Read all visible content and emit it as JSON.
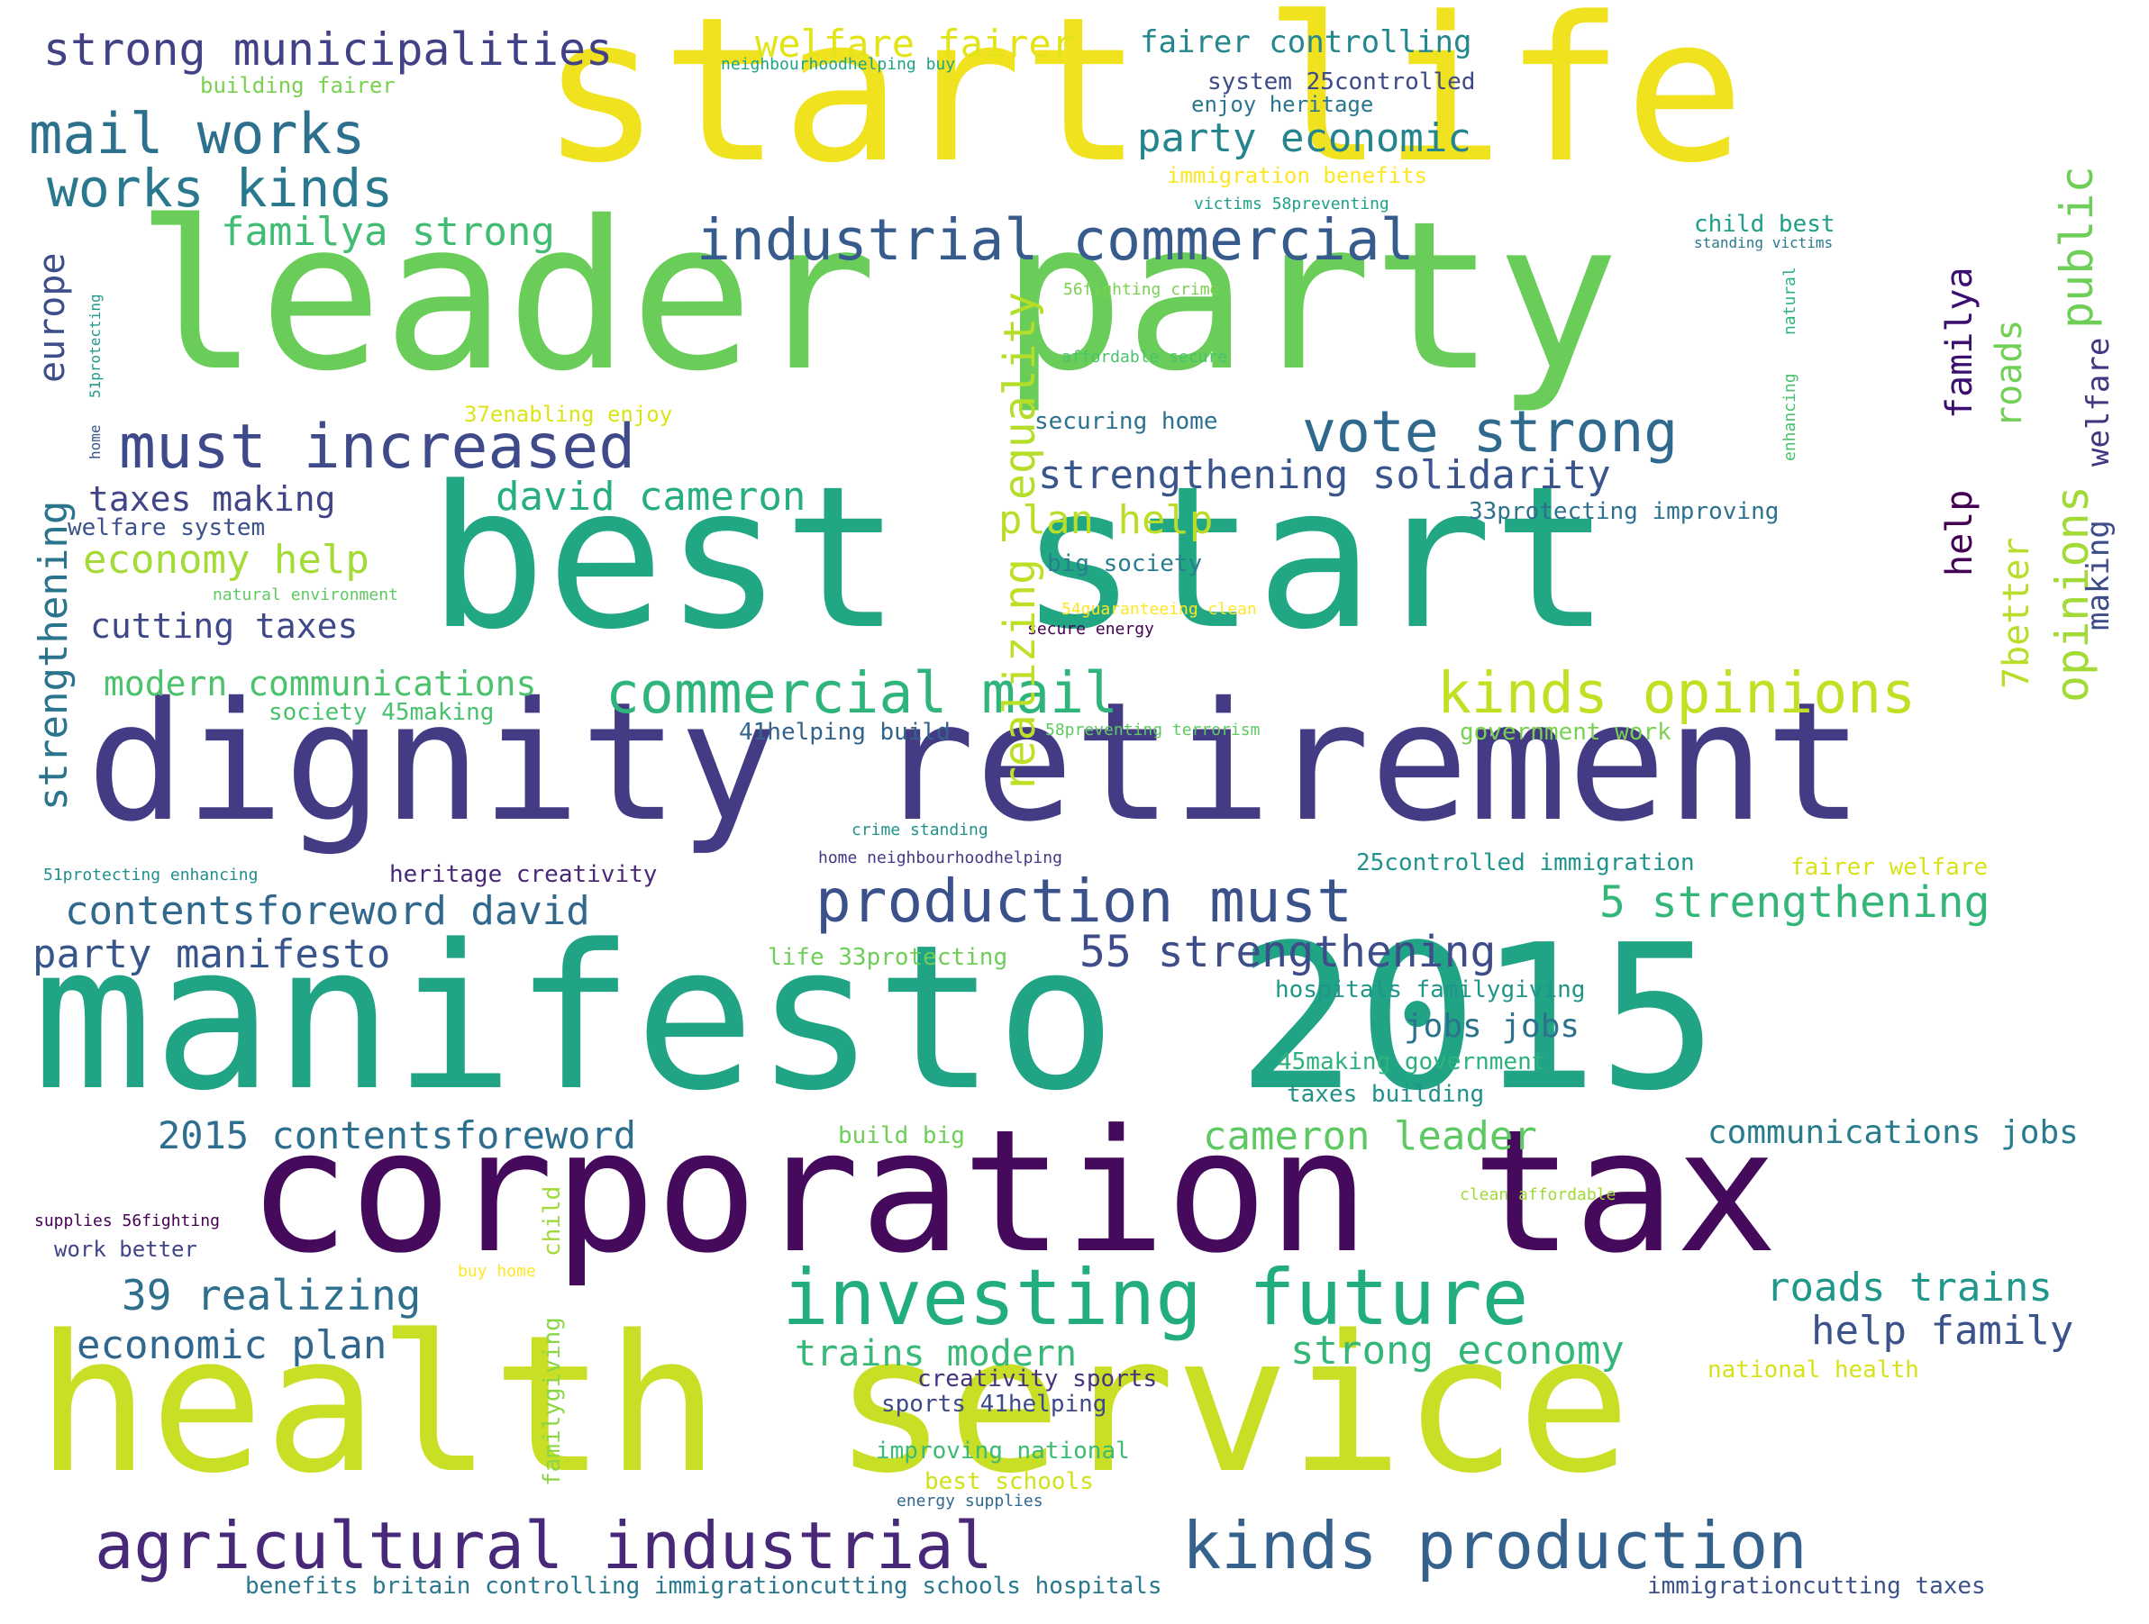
{
  "words": [
    {
      "text": "start life",
      "color": "#f0e21f"
    },
    {
      "text": "leader party",
      "color": "#6bcd59"
    },
    {
      "text": "best start",
      "color": "#22a784"
    },
    {
      "text": "dignity retirement",
      "color": "#433c84"
    },
    {
      "text": "manifesto 2015",
      "color": "#21a485"
    },
    {
      "text": "corporation tax",
      "color": "#450a5c"
    },
    {
      "text": "health service",
      "color": "#c8df25"
    },
    {
      "text": "investing future",
      "color": "#22ad7d"
    },
    {
      "text": "agricultural industrial",
      "color": "#482878"
    },
    {
      "text": "kinds production",
      "color": "#35618d"
    },
    {
      "text": "production must",
      "color": "#3b518b"
    },
    {
      "text": "must increased",
      "color": "#3e4a89"
    },
    {
      "text": "industrial commercial",
      "color": "#375b8d"
    },
    {
      "text": "commercial mail",
      "color": "#2fb47c"
    },
    {
      "text": "kinds opinions",
      "color": "#c2df23"
    },
    {
      "text": "vote strong",
      "color": "#30698e"
    },
    {
      "text": "mail works",
      "color": "#2d708e"
    },
    {
      "text": "works kinds",
      "color": "#2a788e"
    },
    {
      "text": "strong municipalities",
      "color": "#424186"
    },
    {
      "text": "welfare fairer",
      "color": "#e2e418"
    },
    {
      "text": "fairer controlling",
      "color": "#24878e"
    },
    {
      "text": "party economic",
      "color": "#25858e"
    },
    {
      "text": "familya strong",
      "color": "#40bd72"
    },
    {
      "text": "strengthening solidarity",
      "color": "#3a548c"
    },
    {
      "text": "david cameron",
      "color": "#26ad81"
    },
    {
      "text": "taxes making",
      "color": "#404588"
    },
    {
      "text": "economy help",
      "color": "#a5db36"
    },
    {
      "text": "plan help",
      "color": "#bade28"
    },
    {
      "text": "cutting taxes",
      "color": "#3f4889"
    },
    {
      "text": "modern communications",
      "color": "#4cc26c"
    },
    {
      "text": "contentsforeword david",
      "color": "#31688e"
    },
    {
      "text": "party manifesto",
      "color": "#39568c"
    },
    {
      "text": "5 strengthening",
      "color": "#34b679"
    },
    {
      "text": "55 strengthening",
      "color": "#3e4c8a"
    },
    {
      "text": "jobs jobs",
      "color": "#2c728e"
    },
    {
      "text": "2015 contentsforeword",
      "color": "#2e6e8e"
    },
    {
      "text": "cameron leader",
      "color": "#5ec962"
    },
    {
      "text": "communications jobs",
      "color": "#287c8e"
    },
    {
      "text": "39 realizing",
      "color": "#2e6f8e"
    },
    {
      "text": "economic plan",
      "color": "#31678e"
    },
    {
      "text": "trains modern",
      "color": "#38b977"
    },
    {
      "text": "strong economy",
      "color": "#35b779"
    },
    {
      "text": "roads trains",
      "color": "#1f988b"
    },
    {
      "text": "help family",
      "color": "#3b528b"
    },
    {
      "text": "building fairer",
      "color": "#7ad151"
    },
    {
      "text": "system 25controlled",
      "color": "#3e4989"
    },
    {
      "text": "enjoy heritage",
      "color": "#2a768e"
    },
    {
      "text": "immigration benefits",
      "color": "#fde725"
    },
    {
      "text": "victims 58preventing",
      "color": "#1fa088"
    },
    {
      "text": "child best",
      "color": "#1f9e89"
    },
    {
      "text": "standing victims",
      "color": "#29798e"
    },
    {
      "text": "56fighting crime",
      "color": "#7ad151"
    },
    {
      "text": "affordable secure",
      "color": "#4ac16d"
    },
    {
      "text": "37enabling enjoy",
      "color": "#dde318"
    },
    {
      "text": "securing home",
      "color": "#2c718e"
    },
    {
      "text": "33protecting improving",
      "color": "#2c718e"
    },
    {
      "text": "big society",
      "color": "#287d8e"
    },
    {
      "text": "54guaranteeing clean",
      "color": "#fde725"
    },
    {
      "text": "secure energy",
      "color": "#440154"
    },
    {
      "text": "welfare system",
      "color": "#3b528b"
    },
    {
      "text": "natural environment",
      "color": "#5ec962"
    },
    {
      "text": "society 45making",
      "color": "#4ac16d"
    },
    {
      "text": "41helping build",
      "color": "#33638d"
    },
    {
      "text": "58preventing terrorism",
      "color": "#5ec962"
    },
    {
      "text": "government work",
      "color": "#7ad151"
    },
    {
      "text": "crime standing",
      "color": "#21918c"
    },
    {
      "text": "51protecting enhancing",
      "color": "#228d8d"
    },
    {
      "text": "heritage creativity",
      "color": "#482878"
    },
    {
      "text": "home neighbourhoodhelping",
      "color": "#443983"
    },
    {
      "text": "25controlled immigration",
      "color": "#20938c"
    },
    {
      "text": "fairer welfare",
      "color": "#d8e219"
    },
    {
      "text": "life 33protecting",
      "color": "#6ece58"
    },
    {
      "text": "hospitals familygiving",
      "color": "#1f968b"
    },
    {
      "text": "45making government",
      "color": "#2db27d"
    },
    {
      "text": "taxes building",
      "color": "#21918c"
    },
    {
      "text": "build big",
      "color": "#6ece58"
    },
    {
      "text": "clean affordable",
      "color": "#a0da39"
    },
    {
      "text": "supplies 56fighting",
      "color": "#440154"
    },
    {
      "text": "work better",
      "color": "#414487"
    },
    {
      "text": "buy home",
      "color": "#fde725"
    },
    {
      "text": "creativity sports",
      "color": "#46327e"
    },
    {
      "text": "sports 41helping",
      "color": "#3e4989"
    },
    {
      "text": "national health",
      "color": "#d8e219"
    },
    {
      "text": "improving national",
      "color": "#3bbb75"
    },
    {
      "text": "best schools",
      "color": "#d0e11c"
    },
    {
      "text": "energy supplies",
      "color": "#31688e"
    },
    {
      "text": "benefits britain controlling immigrationcutting schools hospitals",
      "color": "#2a788e"
    },
    {
      "text": "immigrationcutting taxes",
      "color": "#3b528b"
    },
    {
      "text": "neighbourhoodhelping buy",
      "color": "#20a486"
    },
    {
      "text": "public",
      "color": "#6ece58",
      "vertical": true
    },
    {
      "text": "opinions",
      "color": "#a2da37",
      "vertical": true
    },
    {
      "text": "equality",
      "color": "#b5de2b",
      "vertical": true
    },
    {
      "text": "realizing",
      "color": "#bddf26",
      "vertical": true
    },
    {
      "text": "familya",
      "color": "#3b0f70",
      "vertical": true
    },
    {
      "text": "roads",
      "color": "#73d056",
      "vertical": true
    },
    {
      "text": "welfare",
      "color": "#453581",
      "vertical": true
    },
    {
      "text": "making",
      "color": "#3d4d8a",
      "vertical": true
    },
    {
      "text": "help",
      "color": "#440154",
      "vertical": true
    },
    {
      "text": "7better",
      "color": "#b8de29",
      "vertical": true
    },
    {
      "text": "europe",
      "color": "#3d4e8a",
      "vertical": true
    },
    {
      "text": "strengthening",
      "color": "#2b748e",
      "vertical": true
    },
    {
      "text": "51protecting",
      "color": "#1f998a",
      "vertical": true
    },
    {
      "text": "home",
      "color": "#39568c",
      "vertical": true
    },
    {
      "text": "natural",
      "color": "#2fb47c",
      "vertical": true
    },
    {
      "text": "enhancing",
      "color": "#4ac16d",
      "vertical": true
    },
    {
      "text": "child",
      "color": "#a0da39",
      "vertical": true
    },
    {
      "text": "familygiving",
      "color": "#8bd646",
      "vertical": true
    }
  ]
}
